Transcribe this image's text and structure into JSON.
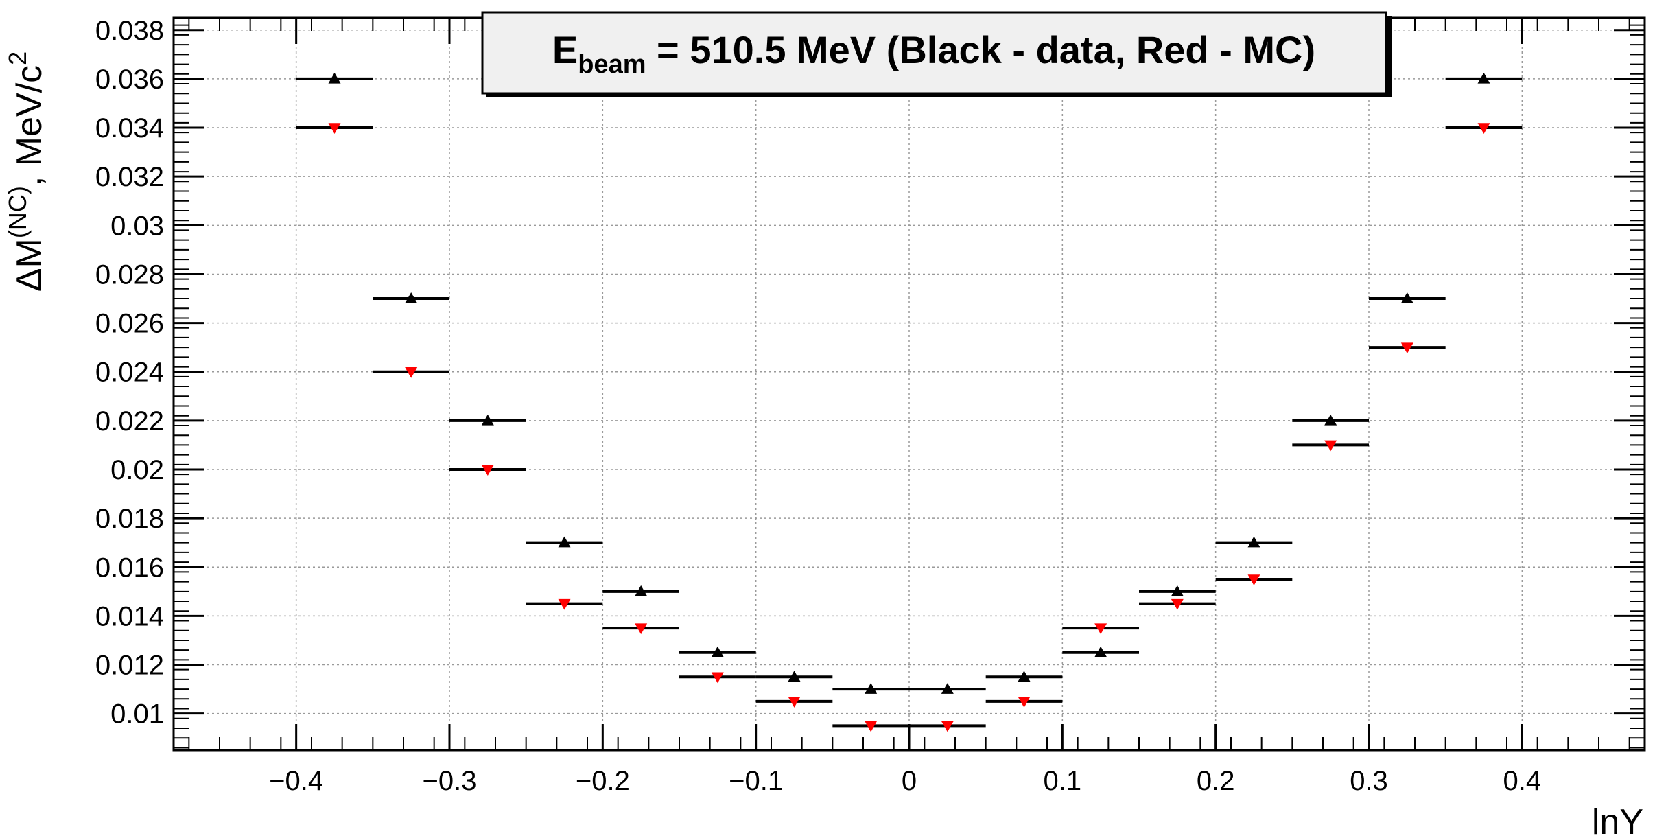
{
  "chart_data": {
    "type": "scatter",
    "title": "E_beam = 510.5 MeV (Black - data, Red - MC)",
    "title_parts": {
      "main": "E",
      "sub": "beam",
      "rest": " = 510.5 MeV (Black - data, Red - MC)"
    },
    "xlabel": "lnY",
    "ylabel": "ΔM^(NC), MeV/c^2",
    "ylabel_parts": {
      "a": "ΔM",
      "sup1": "(NC)",
      "b": ", MeV/c",
      "sup2": "2"
    },
    "xlim": [
      -0.48,
      0.48
    ],
    "ylim": [
      0.0085,
      0.0385
    ],
    "grid": true,
    "x_ticks": [
      -0.4,
      -0.3,
      -0.2,
      -0.1,
      0,
      0.1,
      0.2,
      0.3,
      0.4
    ],
    "x_tick_labels": [
      "−0.4",
      "−0.3",
      "−0.2",
      "−0.1",
      "0",
      "0.1",
      "0.2",
      "0.3",
      "0.4"
    ],
    "y_ticks": [
      0.01,
      0.012,
      0.014,
      0.016,
      0.018,
      0.02,
      0.022,
      0.024,
      0.026,
      0.028,
      0.03,
      0.032,
      0.034,
      0.036,
      0.038
    ],
    "y_tick_labels": [
      "0.01",
      "0.012",
      "0.014",
      "0.016",
      "0.018",
      "0.02",
      "0.022",
      "0.024",
      "0.026",
      "0.028",
      "0.03",
      "0.032",
      "0.034",
      "0.036",
      "0.038"
    ],
    "x_error": 0.025,
    "series": [
      {
        "color": "#000000",
        "marker": "triangle-up",
        "x": [
          -0.375,
          -0.325,
          -0.275,
          -0.225,
          -0.175,
          -0.125,
          -0.075,
          -0.025,
          0.025,
          0.075,
          0.125,
          0.175,
          0.225,
          0.275,
          0.325,
          0.375
        ],
        "y": [
          0.036,
          0.027,
          0.022,
          0.017,
          0.015,
          0.0125,
          0.0115,
          0.011,
          0.011,
          0.0115,
          0.0125,
          0.015,
          0.017,
          0.022,
          0.027,
          0.036
        ]
      },
      {
        "color": "#ff0000",
        "marker": "triangle-down",
        "x": [
          -0.375,
          -0.325,
          -0.275,
          -0.225,
          -0.175,
          -0.125,
          -0.075,
          -0.025,
          0.025,
          0.075,
          0.125,
          0.175,
          0.225,
          0.275,
          0.325,
          0.375
        ],
        "y": [
          0.034,
          0.024,
          0.02,
          0.0145,
          0.0135,
          0.0115,
          0.0105,
          0.0095,
          0.0095,
          0.0105,
          0.0135,
          0.0145,
          0.0155,
          0.021,
          0.025,
          0.034
        ]
      }
    ]
  }
}
